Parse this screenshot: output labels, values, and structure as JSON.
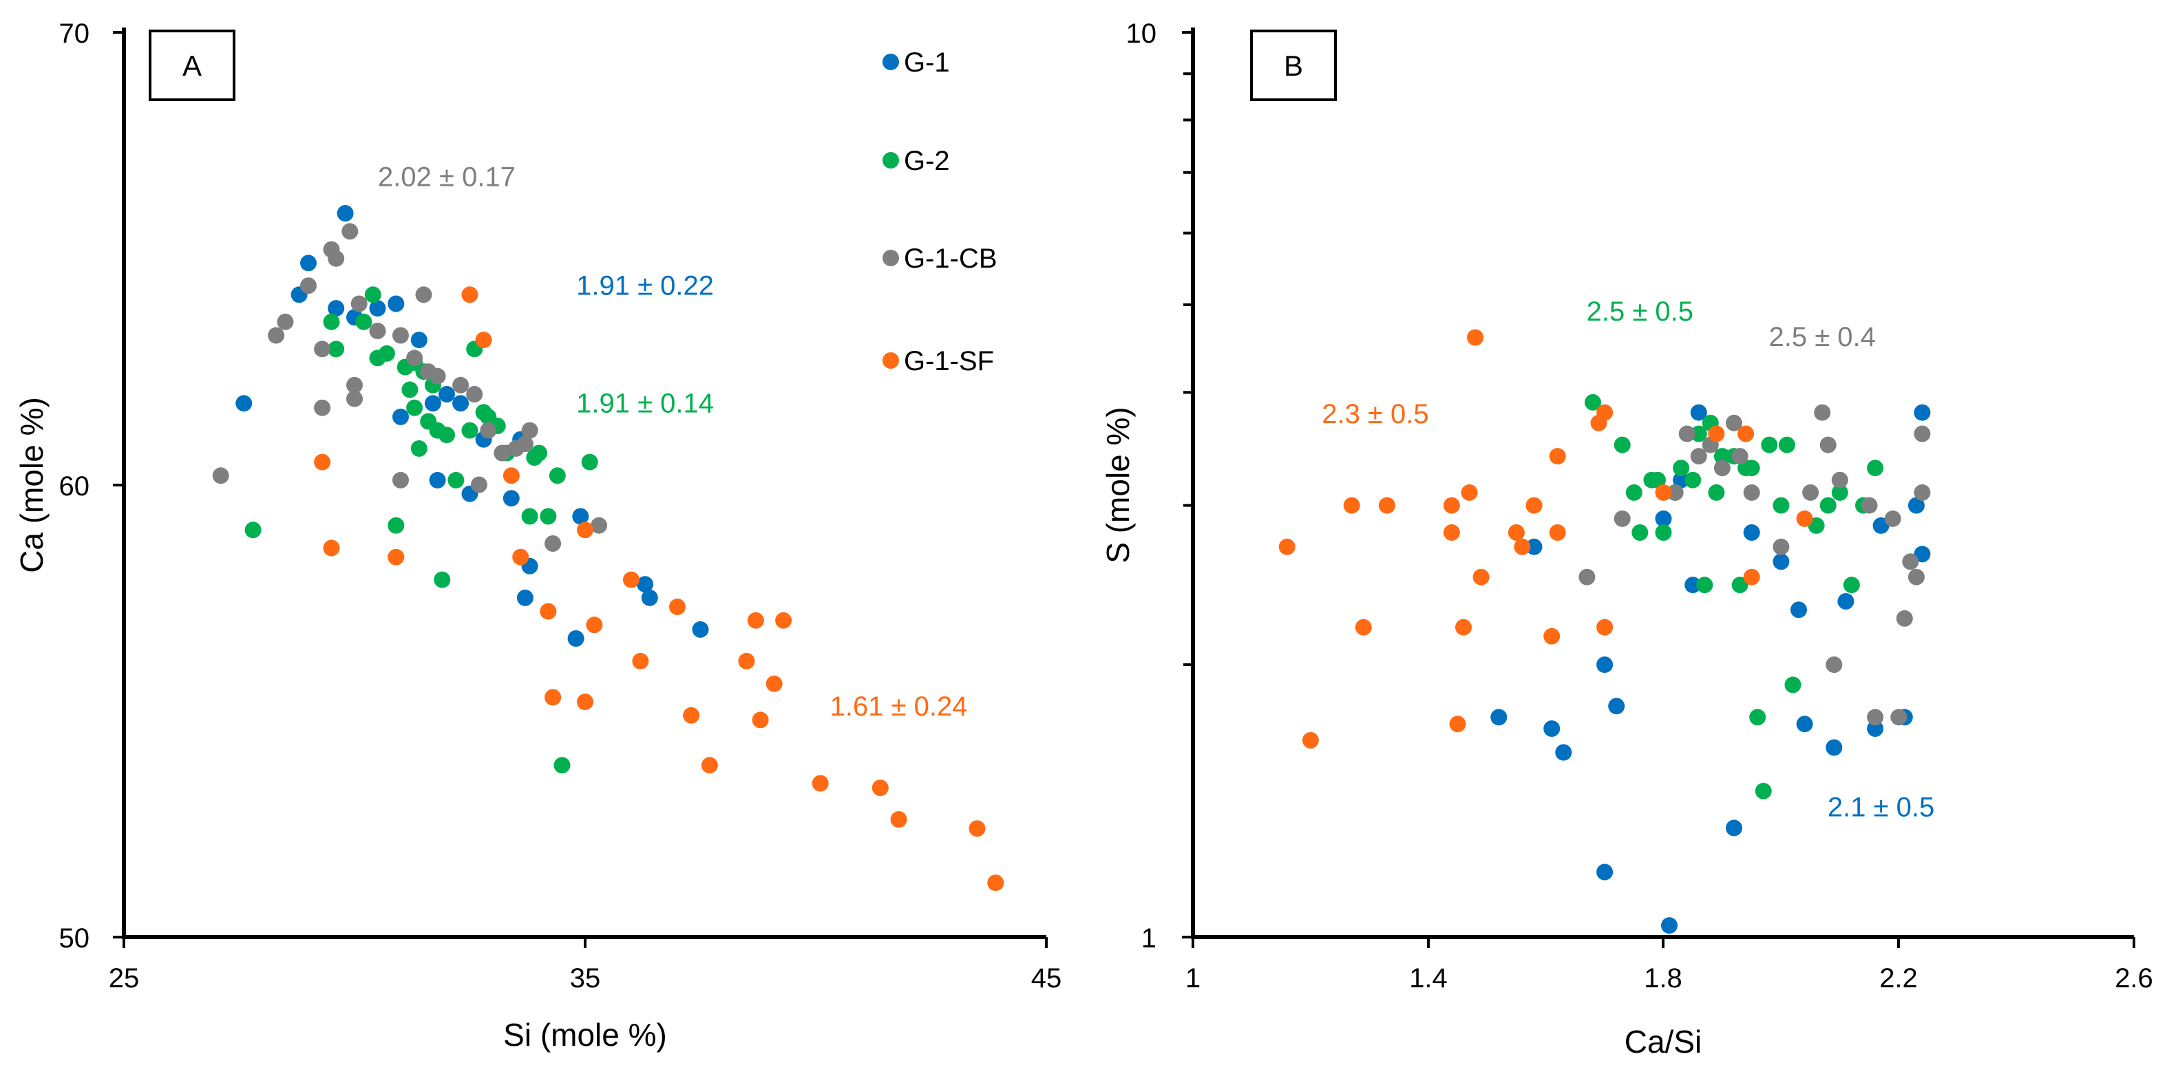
{
  "colors": {
    "G-1": "#0070C0",
    "G-2": "#00B050",
    "G-1-CB": "#7F7F7F",
    "G-1-SF": "#FF6A13"
  },
  "chart_data": [
    {
      "id": "A",
      "panel_label": "A",
      "type": "scatter",
      "xlabel": "Si (mole %)",
      "ylabel": "Ca (mole %)",
      "xlim": [
        25,
        45
      ],
      "ylim": [
        50,
        70
      ],
      "xscale": "linear",
      "yscale": "linear",
      "xticks": [
        25,
        35,
        45
      ],
      "yticks": [
        50,
        60,
        70
      ],
      "xtick_labels": [
        "25",
        "35",
        "45"
      ],
      "ytick_labels": [
        "50",
        "60",
        "70"
      ],
      "legend": {
        "placement": "top-right",
        "entries": [
          "G-1",
          "G-2",
          "G-1-CB",
          "G-1-SF"
        ]
      },
      "annotations": [
        {
          "text": "2.02 ± 0.17",
          "series": "G-1-CB",
          "x": 32.0,
          "y": 66.6
        },
        {
          "text": "1.91 ± 0.22",
          "series": "G-1",
          "x": 36.3,
          "y": 64.2
        },
        {
          "text": "1.91 ± 0.14",
          "series": "G-2",
          "x": 36.3,
          "y": 61.6
        },
        {
          "text": "1.61 ± 0.24",
          "series": "G-1-SF",
          "x": 41.8,
          "y": 54.9
        }
      ],
      "series": [
        {
          "name": "G-1",
          "points": [
            [
              27.6,
              61.8
            ],
            [
              28.8,
              64.2
            ],
            [
              29.0,
              64.9
            ],
            [
              29.6,
              63.9
            ],
            [
              29.8,
              66.0
            ],
            [
              30.0,
              63.7
            ],
            [
              30.5,
              63.9
            ],
            [
              30.9,
              64.0
            ],
            [
              31.0,
              61.5
            ],
            [
              31.4,
              63.2
            ],
            [
              31.7,
              61.8
            ],
            [
              31.8,
              60.1
            ],
            [
              32.0,
              62.0
            ],
            [
              32.3,
              61.8
            ],
            [
              32.5,
              59.8
            ],
            [
              32.8,
              61.0
            ],
            [
              33.4,
              59.7
            ],
            [
              33.6,
              61.0
            ],
            [
              33.7,
              57.5
            ],
            [
              33.8,
              58.2
            ],
            [
              34.8,
              56.6
            ],
            [
              34.9,
              59.3
            ],
            [
              36.3,
              57.8
            ],
            [
              36.4,
              57.5
            ],
            [
              37.5,
              56.8
            ]
          ]
        },
        {
          "name": "G-2",
          "points": [
            [
              27.8,
              59.0
            ],
            [
              29.5,
              63.6
            ],
            [
              29.6,
              63.0
            ],
            [
              30.2,
              63.6
            ],
            [
              30.4,
              64.2
            ],
            [
              30.5,
              62.8
            ],
            [
              30.7,
              62.9
            ],
            [
              30.9,
              59.1
            ],
            [
              31.1,
              62.6
            ],
            [
              31.2,
              62.1
            ],
            [
              31.3,
              61.7
            ],
            [
              31.3,
              62.7
            ],
            [
              31.4,
              60.8
            ],
            [
              31.5,
              62.5
            ],
            [
              31.6,
              61.4
            ],
            [
              31.7,
              62.2
            ],
            [
              31.8,
              61.2
            ],
            [
              31.9,
              57.9
            ],
            [
              32.0,
              61.1
            ],
            [
              32.2,
              60.1
            ],
            [
              32.5,
              61.2
            ],
            [
              32.6,
              63.0
            ],
            [
              32.8,
              61.6
            ],
            [
              32.9,
              61.5
            ],
            [
              33.1,
              61.3
            ],
            [
              33.3,
              60.7
            ],
            [
              33.8,
              59.3
            ],
            [
              33.9,
              60.6
            ],
            [
              34.0,
              60.7
            ],
            [
              34.2,
              59.3
            ],
            [
              34.4,
              60.2
            ],
            [
              34.5,
              53.8
            ],
            [
              35.1,
              60.5
            ]
          ]
        },
        {
          "name": "G-1-CB",
          "points": [
            [
              27.1,
              60.2
            ],
            [
              28.3,
              63.3
            ],
            [
              28.5,
              63.6
            ],
            [
              29.0,
              64.4
            ],
            [
              29.3,
              61.7
            ],
            [
              29.3,
              63.0
            ],
            [
              29.5,
              65.2
            ],
            [
              29.6,
              65.0
            ],
            [
              29.9,
              65.6
            ],
            [
              30.0,
              61.9
            ],
            [
              30.0,
              62.2
            ],
            [
              30.1,
              64.0
            ],
            [
              30.5,
              63.4
            ],
            [
              31.0,
              60.1
            ],
            [
              31.0,
              63.3
            ],
            [
              31.3,
              62.8
            ],
            [
              31.5,
              64.2
            ],
            [
              31.6,
              62.5
            ],
            [
              31.8,
              62.4
            ],
            [
              32.3,
              62.2
            ],
            [
              32.6,
              62.0
            ],
            [
              32.7,
              60.0
            ],
            [
              32.9,
              61.2
            ],
            [
              33.2,
              60.7
            ],
            [
              33.5,
              60.8
            ],
            [
              33.7,
              60.9
            ],
            [
              33.8,
              61.2
            ],
            [
              34.3,
              58.7
            ],
            [
              35.3,
              59.1
            ]
          ]
        },
        {
          "name": "G-1-SF",
          "points": [
            [
              29.3,
              60.5
            ],
            [
              29.5,
              58.6
            ],
            [
              30.9,
              58.4
            ],
            [
              32.5,
              64.2
            ],
            [
              32.8,
              63.2
            ],
            [
              33.4,
              60.2
            ],
            [
              33.6,
              58.4
            ],
            [
              34.2,
              57.2
            ],
            [
              34.3,
              55.3
            ],
            [
              35.0,
              55.2
            ],
            [
              35.2,
              56.9
            ],
            [
              36.0,
              57.9
            ],
            [
              36.2,
              56.1
            ],
            [
              37.0,
              57.3
            ],
            [
              37.3,
              54.9
            ],
            [
              37.7,
              53.8
            ],
            [
              38.5,
              56.1
            ],
            [
              38.7,
              57.0
            ],
            [
              38.8,
              54.8
            ],
            [
              39.1,
              55.6
            ],
            [
              39.3,
              57.0
            ],
            [
              40.1,
              53.4
            ],
            [
              41.4,
              53.3
            ],
            [
              41.8,
              52.6
            ],
            [
              43.5,
              52.4
            ],
            [
              43.9,
              51.2
            ],
            [
              35.0,
              59.0
            ]
          ]
        }
      ]
    },
    {
      "id": "B",
      "panel_label": "B",
      "type": "scatter",
      "xlabel": "Ca/Si",
      "ylabel": "S (mole %)",
      "xlim": [
        1.0,
        2.6
      ],
      "ylim": [
        1,
        10
      ],
      "xscale": "linear",
      "yscale": "log",
      "xticks": [
        1.0,
        1.4,
        1.8,
        2.2,
        2.6
      ],
      "yticks": [
        1,
        10
      ],
      "yminor_ticks": [
        2,
        3,
        4,
        5,
        6,
        7,
        8,
        9
      ],
      "xtick_labels": [
        "1",
        "1.4",
        "1.8",
        "2.2",
        "2.6"
      ],
      "ytick_labels": [
        "1",
        "10"
      ],
      "annotations": [
        {
          "text": "2.5 ± 0.5",
          "series": "G-2",
          "x": 1.76,
          "y": 4.8
        },
        {
          "text": "2.5 ± 0.4",
          "series": "G-1-CB",
          "x": 2.07,
          "y": 4.5
        },
        {
          "text": "2.3 ± 0.5",
          "series": "G-1-SF",
          "x": 1.31,
          "y": 3.7
        },
        {
          "text": "2.1 ± 0.5",
          "series": "G-1",
          "x": 2.17,
          "y": 1.36
        }
      ],
      "series": [
        {
          "name": "G-1",
          "points": [
            [
              1.52,
              1.75
            ],
            [
              1.58,
              2.7
            ],
            [
              1.61,
              1.7
            ],
            [
              1.63,
              1.6
            ],
            [
              1.7,
              1.18
            ],
            [
              1.7,
              2.0
            ],
            [
              1.72,
              1.8
            ],
            [
              1.8,
              2.9
            ],
            [
              1.81,
              1.03
            ],
            [
              1.83,
              3.2
            ],
            [
              1.85,
              2.45
            ],
            [
              1.86,
              3.8
            ],
            [
              1.92,
              1.32
            ],
            [
              1.95,
              2.8
            ],
            [
              2.0,
              2.6
            ],
            [
              2.03,
              2.3
            ],
            [
              2.04,
              1.72
            ],
            [
              2.09,
              1.62
            ],
            [
              2.11,
              2.35
            ],
            [
              2.16,
              1.7
            ],
            [
              2.17,
              2.85
            ],
            [
              2.21,
              1.75
            ],
            [
              2.23,
              3.0
            ],
            [
              2.24,
              3.8
            ],
            [
              2.24,
              2.65
            ]
          ]
        },
        {
          "name": "G-2",
          "points": [
            [
              1.68,
              3.9
            ],
            [
              1.73,
              3.5
            ],
            [
              1.75,
              3.1
            ],
            [
              1.76,
              2.8
            ],
            [
              1.78,
              3.2
            ],
            [
              1.79,
              3.2
            ],
            [
              1.8,
              2.8
            ],
            [
              1.82,
              3.1
            ],
            [
              1.83,
              3.3
            ],
            [
              1.85,
              3.2
            ],
            [
              1.86,
              3.6
            ],
            [
              1.87,
              2.45
            ],
            [
              1.88,
              3.7
            ],
            [
              1.89,
              3.1
            ],
            [
              1.9,
              3.4
            ],
            [
              1.92,
              3.4
            ],
            [
              1.93,
              2.45
            ],
            [
              1.94,
              3.3
            ],
            [
              1.95,
              3.3
            ],
            [
              1.96,
              1.75
            ],
            [
              1.97,
              1.45
            ],
            [
              1.98,
              3.5
            ],
            [
              2.0,
              3.0
            ],
            [
              2.01,
              3.5
            ],
            [
              2.02,
              1.9
            ],
            [
              2.06,
              2.85
            ],
            [
              2.08,
              3.0
            ],
            [
              2.1,
              3.1
            ],
            [
              2.12,
              2.45
            ],
            [
              2.14,
              3.0
            ],
            [
              2.16,
              3.3
            ]
          ]
        },
        {
          "name": "G-1-CB",
          "points": [
            [
              1.67,
              2.5
            ],
            [
              1.73,
              2.9
            ],
            [
              1.82,
              3.1
            ],
            [
              1.84,
              3.6
            ],
            [
              1.86,
              3.4
            ],
            [
              1.88,
              3.5
            ],
            [
              1.9,
              3.3
            ],
            [
              1.92,
              3.7
            ],
            [
              1.93,
              3.4
            ],
            [
              1.95,
              3.1
            ],
            [
              2.0,
              2.7
            ],
            [
              2.05,
              3.1
            ],
            [
              2.07,
              3.8
            ],
            [
              2.08,
              3.5
            ],
            [
              2.09,
              2.0
            ],
            [
              2.1,
              3.2
            ],
            [
              2.15,
              3.0
            ],
            [
              2.16,
              1.75
            ],
            [
              2.19,
              2.9
            ],
            [
              2.2,
              1.75
            ],
            [
              2.21,
              2.25
            ],
            [
              2.22,
              2.6
            ],
            [
              2.23,
              2.5
            ],
            [
              2.24,
              3.6
            ],
            [
              2.24,
              3.1
            ]
          ]
        },
        {
          "name": "G-1-SF",
          "points": [
            [
              1.16,
              2.7
            ],
            [
              1.2,
              1.65
            ],
            [
              1.27,
              3.0
            ],
            [
              1.29,
              2.2
            ],
            [
              1.33,
              3.0
            ],
            [
              1.44,
              3.0
            ],
            [
              1.44,
              2.8
            ],
            [
              1.45,
              1.72
            ],
            [
              1.46,
              2.2
            ],
            [
              1.47,
              3.1
            ],
            [
              1.48,
              4.6
            ],
            [
              1.49,
              2.5
            ],
            [
              1.55,
              2.8
            ],
            [
              1.56,
              2.7
            ],
            [
              1.58,
              3.0
            ],
            [
              1.61,
              2.15
            ],
            [
              1.62,
              3.4
            ],
            [
              1.62,
              2.8
            ],
            [
              1.69,
              3.7
            ],
            [
              1.7,
              3.8
            ],
            [
              1.7,
              2.2
            ],
            [
              1.8,
              3.1
            ],
            [
              1.89,
              3.6
            ],
            [
              1.94,
              3.6
            ],
            [
              1.95,
              2.5
            ],
            [
              2.04,
              2.9
            ]
          ]
        }
      ]
    }
  ]
}
